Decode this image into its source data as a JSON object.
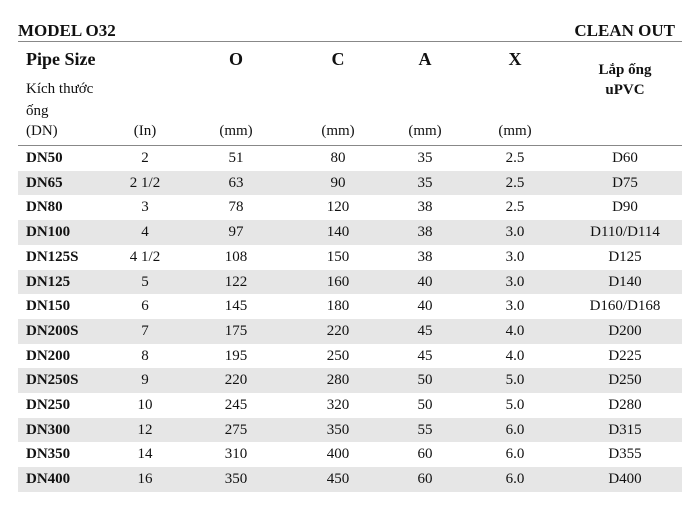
{
  "header": {
    "model": "MODEL O32",
    "product": "CLEAN OUT"
  },
  "table": {
    "columns": [
      "Pipe Size",
      "O",
      "C",
      "A",
      "X",
      "Lắp ống uPVC"
    ],
    "size_note": "Kích thước ống",
    "units": [
      "(DN)",
      "(In)",
      "(mm)",
      "(mm)",
      "(mm)",
      "(mm)"
    ],
    "rows": [
      [
        "DN50",
        "2",
        "51",
        "80",
        "35",
        "2.5",
        "D60"
      ],
      [
        "DN65",
        "2 1/2",
        "63",
        "90",
        "35",
        "2.5",
        "D75"
      ],
      [
        "DN80",
        "3",
        "78",
        "120",
        "38",
        "2.5",
        "D90"
      ],
      [
        "DN100",
        "4",
        "97",
        "140",
        "38",
        "3.0",
        "D110/D114"
      ],
      [
        "DN125S",
        "4 1/2",
        "108",
        "150",
        "38",
        "3.0",
        "D125"
      ],
      [
        "DN125",
        "5",
        "122",
        "160",
        "40",
        "3.0",
        "D140"
      ],
      [
        "DN150",
        "6",
        "145",
        "180",
        "40",
        "3.0",
        "D160/D168"
      ],
      [
        "DN200S",
        "7",
        "175",
        "220",
        "45",
        "4.0",
        "D200"
      ],
      [
        "DN200",
        "8",
        "195",
        "250",
        "45",
        "4.0",
        "D225"
      ],
      [
        "DN250S",
        "9",
        "220",
        "280",
        "50",
        "5.0",
        "D250"
      ],
      [
        "DN250",
        "10",
        "245",
        "320",
        "50",
        "5.0",
        "D280"
      ],
      [
        "DN300",
        "12",
        "275",
        "350",
        "55",
        "6.0",
        "D315"
      ],
      [
        "DN350",
        "14",
        "310",
        "400",
        "60",
        "6.0",
        "D355"
      ],
      [
        "DN400",
        "16",
        "350",
        "450",
        "60",
        "6.0",
        "D400"
      ]
    ]
  }
}
